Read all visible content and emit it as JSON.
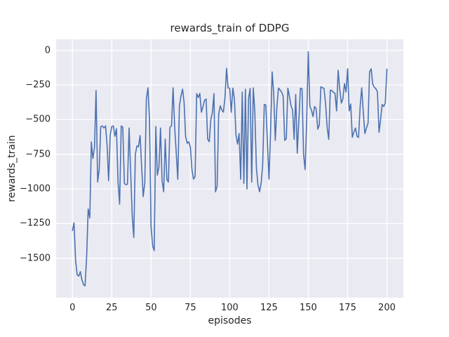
{
  "figure": {
    "title": "rewards_train of DDPG",
    "xlabel": "episodes",
    "ylabel": "rewards_train"
  },
  "chart_data": {
    "type": "line",
    "title": "rewards_train of DDPG",
    "xlabel": "episodes",
    "ylabel": "rewards_train",
    "legend": "none",
    "grid": true,
    "background_color": "#eaeaf2",
    "grid_color": "#ffffff",
    "text_color": "#262626",
    "line_color": "#4c72b0",
    "xlim": [
      -10.4,
      210.5
    ],
    "ylim": [
      -1785,
      80
    ],
    "xticks": [
      0,
      25,
      50,
      75,
      100,
      125,
      150,
      175,
      200
    ],
    "yticks": [
      0,
      -250,
      -500,
      -750,
      -1000,
      -1250,
      -1500
    ],
    "x_start": 0,
    "x_step": 1,
    "series": [
      {
        "name": "rewards_train",
        "color": "#4c72b0",
        "values": [
          -1300,
          -1245,
          -1520,
          -1620,
          -1630,
          -1597,
          -1655,
          -1690,
          -1700,
          -1490,
          -1145,
          -1210,
          -660,
          -780,
          -700,
          -290,
          -950,
          -860,
          -550,
          -545,
          -560,
          -545,
          -680,
          -940,
          -610,
          -550,
          -545,
          -620,
          -565,
          -955,
          -1110,
          -545,
          -555,
          -960,
          -970,
          -965,
          -560,
          -870,
          -1200,
          -1350,
          -750,
          -690,
          -695,
          -615,
          -840,
          -1055,
          -955,
          -355,
          -270,
          -500,
          -1275,
          -1410,
          -1445,
          -550,
          -900,
          -840,
          -560,
          -940,
          -1020,
          -640,
          -930,
          -950,
          -555,
          -545,
          -270,
          -555,
          -740,
          -930,
          -405,
          -330,
          -280,
          -375,
          -625,
          -670,
          -660,
          -700,
          -860,
          -929,
          -910,
          -312,
          -340,
          -310,
          -446,
          -405,
          -360,
          -351,
          -640,
          -659,
          -500,
          -450,
          -312,
          -1021,
          -980,
          -461,
          -400,
          -430,
          -445,
          -340,
          -130,
          -270,
          -272,
          -446,
          -272,
          -350,
          -610,
          -676,
          -600,
          -930,
          -300,
          -960,
          -280,
          -1000,
          -350,
          -275,
          -950,
          -270,
          -440,
          -850,
          -970,
          -1020,
          -960,
          -830,
          -390,
          -395,
          -663,
          -929,
          -600,
          -155,
          -305,
          -650,
          -413,
          -272,
          -285,
          -300,
          -330,
          -650,
          -636,
          -272,
          -330,
          -400,
          -430,
          -642,
          -318,
          -742,
          -500,
          -273,
          -277,
          -750,
          -860,
          -500,
          -10,
          -405,
          -430,
          -478,
          -405,
          -420,
          -568,
          -540,
          -262,
          -270,
          -273,
          -385,
          -555,
          -642,
          -287,
          -290,
          -302,
          -310,
          -437,
          -143,
          -277,
          -380,
          -350,
          -240,
          -300,
          -133,
          -437,
          -387,
          -628,
          -590,
          -560,
          -620,
          -628,
          -400,
          -270,
          -450,
          -600,
          -560,
          -526,
          -155,
          -133,
          -244,
          -266,
          -277,
          -300,
          -591,
          -498,
          -390,
          -405,
          -380,
          -135
        ]
      }
    ]
  }
}
